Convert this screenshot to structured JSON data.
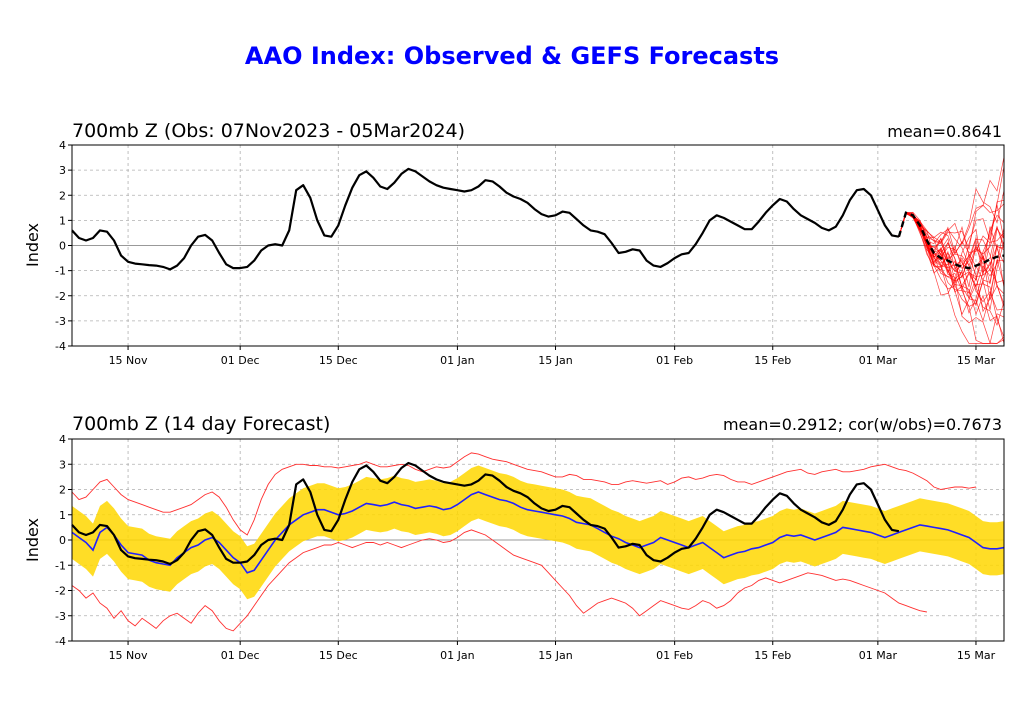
{
  "title": "AAO Index: Observed & GEFS Forecasts",
  "colors": {
    "title": "#0000ff",
    "observed": "#000000",
    "ensemble_members": "#ff0000",
    "ensemble_mean": "#000000",
    "forecast_mean": "#2020ff",
    "spread_band": "#ffd700",
    "bounds": "#ff3030",
    "grid": "#b0b0b0"
  },
  "chart_data": [
    {
      "type": "line",
      "title": "700mb Z (Obs: 07Nov2023 - 05Mar2024)",
      "stat_text": "mean=0.8641",
      "ylabel": "Index",
      "ylim": [
        -4,
        4
      ],
      "yticks": [
        "4",
        "3",
        "2",
        "1",
        "0",
        "-1",
        "-2",
        "-3",
        "-4"
      ],
      "xticks": [
        "15 Nov",
        "01 Dec",
        "15 Dec",
        "01 Jan",
        "15 Jan",
        "01 Feb",
        "15 Feb",
        "01 Mar",
        "15 Mar"
      ],
      "x_range": [
        "07 Nov 2023",
        "19 Mar 2024"
      ],
      "grid": true,
      "series": [
        {
          "x_start": "07 Nov 2023",
          "values": [
            0.6,
            0.3,
            0.2,
            0.3,
            0.6,
            0.55,
            0.2,
            -0.4,
            -0.65,
            -0.72,
            -0.75,
            -0.78,
            -0.8,
            -0.85,
            -0.95,
            -0.8,
            -0.5,
            0.0,
            0.35,
            0.42,
            0.2,
            -0.3,
            -0.75,
            -0.9,
            -0.9,
            -0.85,
            -0.6,
            -0.2,
            0.0,
            0.05,
            0.0,
            0.6,
            2.2,
            2.4,
            1.9,
            1.0,
            0.4,
            0.35,
            0.8,
            1.6,
            2.3,
            2.8,
            2.95,
            2.7,
            2.35,
            2.25,
            2.5,
            2.85,
            3.05,
            2.95,
            2.75,
            2.55,
            2.4,
            2.3,
            2.25,
            2.2,
            2.15,
            2.2,
            2.35,
            2.6,
            2.55,
            2.35,
            2.1,
            1.95,
            1.85,
            1.7,
            1.45,
            1.25,
            1.15,
            1.2,
            1.35,
            1.3,
            1.05,
            0.8,
            0.6,
            0.55,
            0.45,
            0.1,
            -0.3,
            -0.25,
            -0.15,
            -0.2,
            -0.6,
            -0.8,
            -0.85,
            -0.7,
            -0.5,
            -0.35,
            -0.3,
            0.05,
            0.5,
            1.0,
            1.2,
            1.1,
            0.95,
            0.8,
            0.65,
            0.65,
            0.95,
            1.3,
            1.6,
            1.85,
            1.75,
            1.45,
            1.2,
            1.05,
            0.9,
            0.7,
            0.6,
            0.75,
            1.2,
            1.8,
            2.2,
            2.25,
            2.0,
            1.4,
            0.8,
            0.4,
            0.35
          ]
        },
        {
          "x_start": "04 Mar 2024",
          "dashed": true,
          "values": [
            0.35,
            1.3,
            1.2,
            0.8,
            0.2,
            -0.3,
            -0.5,
            -0.6,
            -0.75,
            -0.85,
            -0.9,
            -0.8,
            -0.7,
            -0.55,
            -0.45,
            -0.4
          ]
        }
      ],
      "ensemble_members_count": 30
    },
    {
      "type": "line",
      "title": "700mb Z (14 day Forecast)",
      "stat_text": "mean=0.2912; cor(w/obs)=0.7673",
      "ylabel": "Index",
      "ylim": [
        -4,
        4
      ],
      "yticks": [
        "4",
        "3",
        "2",
        "1",
        "0",
        "-1",
        "-2",
        "-3",
        "-4"
      ],
      "xticks": [
        "15 Nov",
        "01 Dec",
        "15 Dec",
        "01 Jan",
        "15 Jan",
        "01 Feb",
        "15 Feb",
        "01 Mar",
        "15 Mar"
      ],
      "x_range": [
        "07 Nov 2023",
        "19 Mar 2024"
      ],
      "grid": true,
      "series": [
        {
          "role": "observed",
          "x_start": "07 Nov 2023",
          "same_as_top_panel": true
        },
        {
          "role": "forecast_mean",
          "x_start": "07 Nov 2023",
          "values": [
            0.3,
            0.1,
            -0.1,
            -0.4,
            0.3,
            0.5,
            0.2,
            -0.2,
            -0.5,
            -0.55,
            -0.6,
            -0.8,
            -0.9,
            -0.95,
            -1.0,
            -0.7,
            -0.5,
            -0.3,
            -0.2,
            0.0,
            0.1,
            -0.1,
            -0.4,
            -0.7,
            -0.9,
            -1.3,
            -1.2,
            -0.8,
            -0.4,
            0.0,
            0.3,
            0.6,
            0.8,
            1.0,
            1.1,
            1.2,
            1.2,
            1.1,
            1.0,
            1.05,
            1.15,
            1.3,
            1.45,
            1.4,
            1.35,
            1.4,
            1.5,
            1.4,
            1.35,
            1.25,
            1.3,
            1.35,
            1.3,
            1.2,
            1.25,
            1.4,
            1.6,
            1.8,
            1.9,
            1.8,
            1.7,
            1.6,
            1.55,
            1.45,
            1.3,
            1.2,
            1.15,
            1.1,
            1.05,
            1.0,
            0.95,
            0.85,
            0.7,
            0.65,
            0.6,
            0.45,
            0.3,
            0.15,
            0.05,
            -0.1,
            -0.2,
            -0.3,
            -0.2,
            -0.1,
            0.1,
            0.0,
            -0.1,
            -0.2,
            -0.3,
            -0.2,
            -0.1,
            -0.3,
            -0.5,
            -0.7,
            -0.6,
            -0.5,
            -0.45,
            -0.35,
            -0.3,
            -0.2,
            -0.1,
            0.1,
            0.2,
            0.15,
            0.2,
            0.1,
            0.0,
            0.1,
            0.2,
            0.3,
            0.5,
            0.45,
            0.4,
            0.35,
            0.3,
            0.2,
            0.1,
            0.2,
            0.3,
            0.4,
            0.5,
            0.6,
            0.55,
            0.5,
            0.45,
            0.4,
            0.3,
            0.2,
            0.1,
            -0.1,
            -0.3,
            -0.35,
            -0.35,
            -0.3
          ]
        },
        {
          "role": "spread_half_width",
          "value": 1.05
        },
        {
          "role": "upper_bound",
          "values": [
            1.9,
            1.6,
            1.7,
            2.0,
            2.3,
            2.4,
            2.1,
            1.8,
            1.6,
            1.5,
            1.4,
            1.3,
            1.2,
            1.1,
            1.1,
            1.2,
            1.3,
            1.4,
            1.6,
            1.8,
            1.9,
            1.7,
            1.3,
            0.8,
            0.4,
            0.2,
            0.8,
            1.6,
            2.2,
            2.6,
            2.8,
            2.9,
            3.0,
            3.0,
            2.95,
            2.95,
            2.9,
            2.9,
            2.85,
            2.9,
            2.95,
            3.0,
            3.1,
            3.0,
            2.9,
            2.9,
            2.95,
            3.0,
            2.95,
            2.8,
            2.7,
            2.8,
            2.9,
            2.85,
            2.9,
            3.1,
            3.3,
            3.45,
            3.4,
            3.3,
            3.2,
            3.15,
            3.1,
            3.0,
            2.9,
            2.8,
            2.75,
            2.7,
            2.6,
            2.5,
            2.5,
            2.6,
            2.55,
            2.4,
            2.4,
            2.35,
            2.3,
            2.2,
            2.2,
            2.3,
            2.35,
            2.3,
            2.25,
            2.3,
            2.35,
            2.2,
            2.3,
            2.45,
            2.5,
            2.4,
            2.45,
            2.55,
            2.6,
            2.55,
            2.4,
            2.3,
            2.3,
            2.2,
            2.3,
            2.4,
            2.5,
            2.6,
            2.7,
            2.75,
            2.8,
            2.65,
            2.6,
            2.7,
            2.75,
            2.8,
            2.7,
            2.7,
            2.75,
            2.8,
            2.9,
            2.95,
            3.0,
            2.9,
            2.8,
            2.75,
            2.65,
            2.5,
            2.35,
            2.1,
            2.0,
            2.05,
            2.1,
            2.1,
            2.05,
            2.1
          ]
        },
        {
          "role": "lower_bound",
          "values": [
            -1.8,
            -2.0,
            -2.3,
            -2.1,
            -2.5,
            -2.7,
            -3.1,
            -2.8,
            -3.2,
            -3.4,
            -3.1,
            -3.3,
            -3.5,
            -3.2,
            -3.0,
            -2.9,
            -3.1,
            -3.3,
            -2.9,
            -2.6,
            -2.8,
            -3.2,
            -3.5,
            -3.6,
            -3.3,
            -3.0,
            -2.6,
            -2.2,
            -1.8,
            -1.5,
            -1.2,
            -0.9,
            -0.7,
            -0.5,
            -0.4,
            -0.3,
            -0.2,
            -0.2,
            -0.1,
            -0.2,
            -0.3,
            -0.2,
            -0.1,
            -0.1,
            -0.2,
            -0.1,
            -0.2,
            -0.3,
            -0.2,
            -0.1,
            0.0,
            0.05,
            0.0,
            -0.1,
            -0.05,
            0.1,
            0.3,
            0.4,
            0.3,
            0.2,
            0.0,
            -0.2,
            -0.4,
            -0.6,
            -0.7,
            -0.8,
            -0.9,
            -1.0,
            -1.3,
            -1.6,
            -1.9,
            -2.2,
            -2.6,
            -2.9,
            -2.7,
            -2.5,
            -2.4,
            -2.3,
            -2.4,
            -2.5,
            -2.7,
            -3.0,
            -2.8,
            -2.6,
            -2.4,
            -2.5,
            -2.6,
            -2.7,
            -2.75,
            -2.6,
            -2.4,
            -2.5,
            -2.7,
            -2.6,
            -2.4,
            -2.1,
            -1.9,
            -1.8,
            -1.6,
            -1.5,
            -1.6,
            -1.7,
            -1.6,
            -1.5,
            -1.4,
            -1.3,
            -1.35,
            -1.4,
            -1.5,
            -1.6,
            -1.55,
            -1.6,
            -1.7,
            -1.8,
            -1.9,
            -2.0,
            -2.1,
            -2.3,
            -2.5,
            -2.6,
            -2.7,
            -2.8,
            -2.85
          ]
        }
      ]
    }
  ]
}
